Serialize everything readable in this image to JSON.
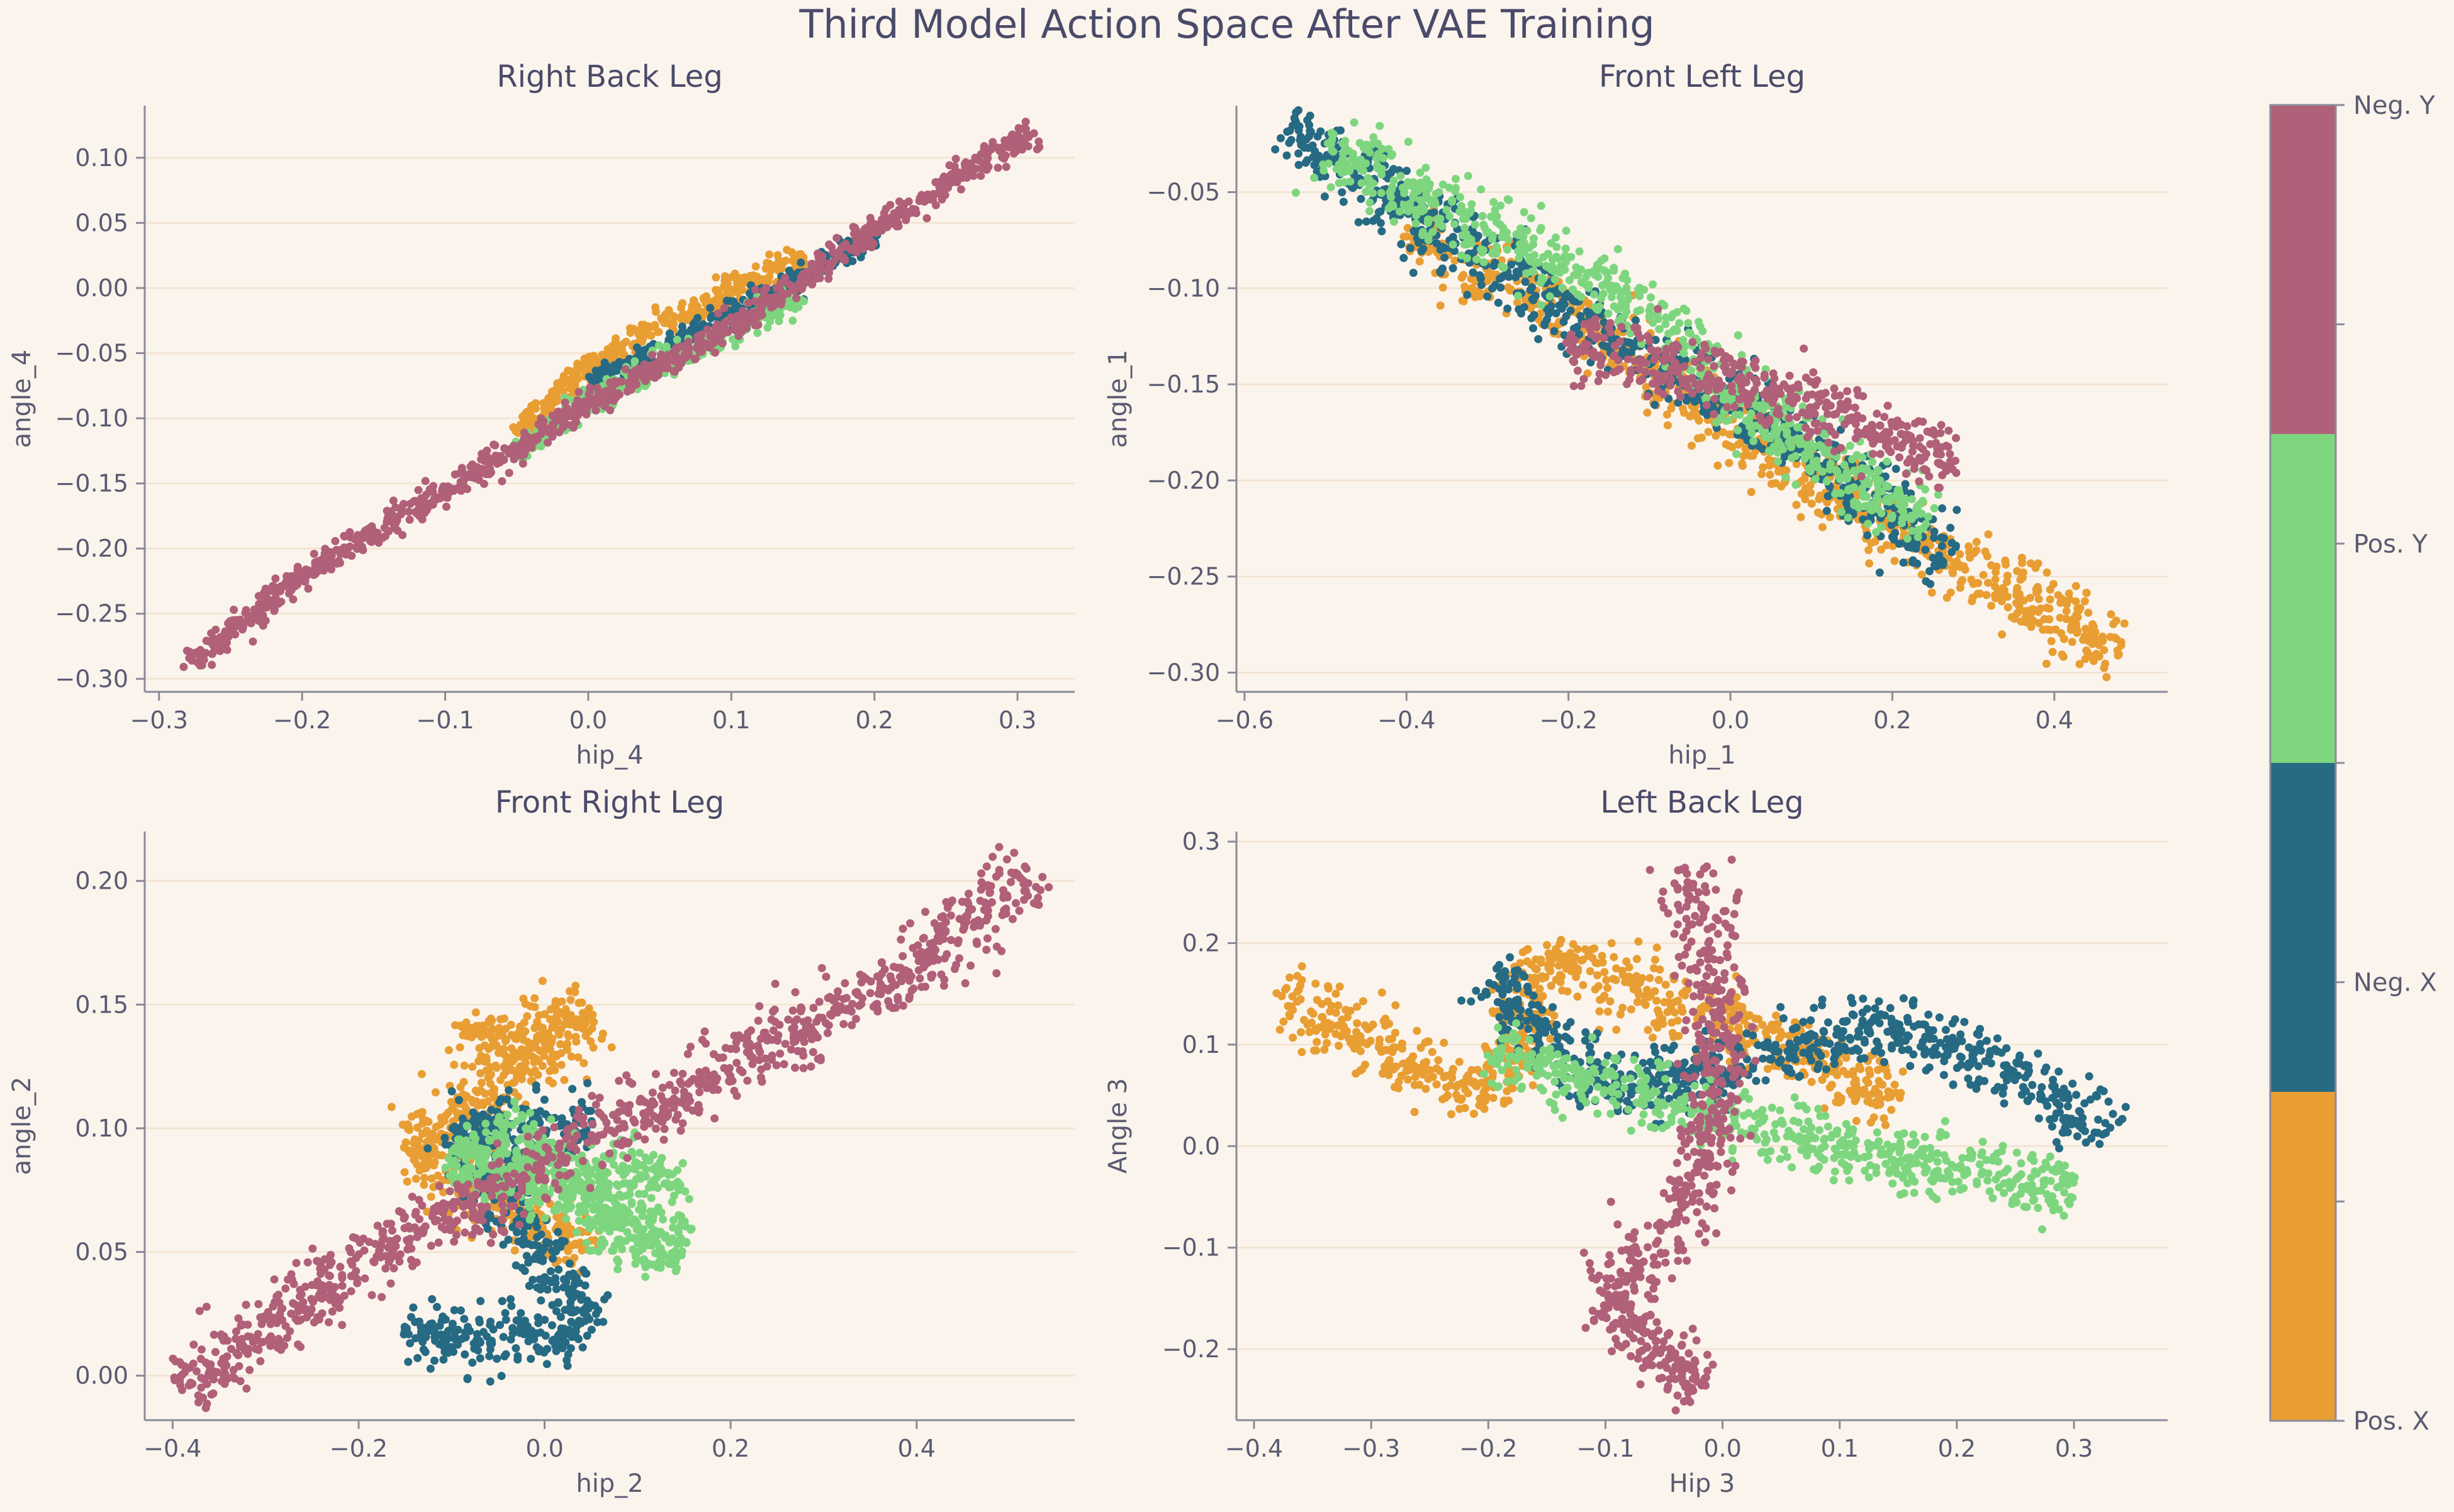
{
  "figure_title": "Third Model Action Space After VAE Training",
  "colors": {
    "background": "#faf4ec",
    "axis": "#8a8a9a",
    "text": "#5a5a72",
    "title": "#4a4a6a",
    "grid": "#f3e2d0"
  },
  "colorbar": {
    "labels": [
      "Neg. Y",
      "Pos. Y",
      "Neg. X",
      "Pos. X"
    ],
    "colors": [
      "#b06078",
      "#7dd67f",
      "#266a84",
      "#e89e33"
    ]
  },
  "chart_data": [
    {
      "type": "scatter",
      "title": "Right Back Leg",
      "xlabel": "hip_4",
      "ylabel": "angle_4",
      "xlim": [
        -0.31,
        0.34
      ],
      "ylim": [
        -0.31,
        0.14
      ],
      "xticks": [
        -0.3,
        -0.2,
        -0.1,
        0.0,
        0.1,
        0.2,
        0.3
      ],
      "xtick_labels": [
        "−0.3",
        "−0.2",
        "−0.1",
        "0.0",
        "0.1",
        "0.2",
        "0.3"
      ],
      "yticks": [
        -0.3,
        -0.25,
        -0.2,
        -0.15,
        -0.1,
        -0.05,
        0.0,
        0.05,
        0.1
      ],
      "ytick_labels": [
        "−0.30",
        "−0.25",
        "−0.20",
        "−0.15",
        "−0.10",
        "−0.05",
        "0.00",
        "0.05",
        "0.10"
      ],
      "series": [
        {
          "color": "#e89e33",
          "values": [
            [
              -0.05,
              -0.112
            ],
            [
              0.0,
              -0.062
            ],
            [
              0.05,
              -0.028
            ],
            [
              0.1,
              -0.002
            ],
            [
              0.15,
              0.025
            ]
          ]
        },
        {
          "color": "#266a84",
          "values": [
            [
              0.0,
              -0.075
            ],
            [
              0.05,
              -0.048
            ],
            [
              0.1,
              -0.02
            ],
            [
              0.15,
              0.008
            ],
            [
              0.2,
              0.04
            ]
          ]
        },
        {
          "color": "#7dd67f",
          "values": [
            [
              -0.05,
              -0.128
            ],
            [
              0.0,
              -0.085
            ],
            [
              0.05,
              -0.06
            ],
            [
              0.1,
              -0.035
            ],
            [
              0.15,
              -0.005
            ]
          ]
        },
        {
          "color": "#b06078",
          "values": [
            [
              -0.28,
              -0.29
            ],
            [
              -0.2,
              -0.22
            ],
            [
              -0.1,
              -0.155
            ],
            [
              0.0,
              -0.09
            ],
            [
              0.1,
              -0.03
            ],
            [
              0.2,
              0.045
            ],
            [
              0.31,
              0.12
            ]
          ]
        }
      ]
    },
    {
      "type": "scatter",
      "title": "Front Left Leg",
      "xlabel": "hip_1",
      "ylabel": "angle_1",
      "xlim": [
        -0.61,
        0.54
      ],
      "ylim": [
        -0.31,
        -0.005
      ],
      "xticks": [
        -0.6,
        -0.4,
        -0.2,
        0.0,
        0.2,
        0.4
      ],
      "xtick_labels": [
        "−0.6",
        "−0.4",
        "−0.2",
        "0.0",
        "0.2",
        "0.4"
      ],
      "yticks": [
        -0.3,
        -0.25,
        -0.2,
        -0.15,
        -0.1,
        -0.05
      ],
      "ytick_labels": [
        "−0.30",
        "−0.25",
        "−0.20",
        "−0.15",
        "−0.10",
        "−0.05"
      ],
      "series": [
        {
          "color": "#e89e33",
          "values": [
            [
              -0.4,
              -0.072
            ],
            [
              -0.2,
              -0.112
            ],
            [
              0.1,
              -0.2
            ],
            [
              0.3,
              -0.248
            ],
            [
              0.48,
              -0.29
            ]
          ]
        },
        {
          "color": "#266a84",
          "values": [
            [
              -0.55,
              -0.015
            ],
            [
              -0.4,
              -0.06
            ],
            [
              -0.2,
              -0.115
            ],
            [
              0.05,
              -0.17
            ],
            [
              0.27,
              -0.24
            ]
          ]
        },
        {
          "color": "#7dd67f",
          "values": [
            [
              -0.5,
              -0.025
            ],
            [
              -0.35,
              -0.06
            ],
            [
              -0.15,
              -0.1
            ],
            [
              0.1,
              -0.185
            ],
            [
              0.25,
              -0.225
            ]
          ]
        },
        {
          "color": "#b06078",
          "values": [
            [
              -0.2,
              -0.125
            ],
            [
              -0.1,
              -0.14
            ],
            [
              0.0,
              -0.148
            ],
            [
              0.1,
              -0.16
            ],
            [
              0.28,
              -0.192
            ]
          ]
        }
      ]
    },
    {
      "type": "scatter",
      "title": "Front Right Leg",
      "xlabel": "hip_2",
      "ylabel": "angle_2",
      "xlim": [
        -0.43,
        0.57
      ],
      "ylim": [
        -0.018,
        0.22
      ],
      "xticks": [
        -0.4,
        -0.2,
        0.0,
        0.2,
        0.4
      ],
      "xtick_labels": [
        "−0.4",
        "−0.2",
        "0.0",
        "0.2",
        "0.4"
      ],
      "yticks": [
        0.0,
        0.05,
        0.1,
        0.15,
        0.2
      ],
      "ytick_labels": [
        "0.00",
        "0.05",
        "0.10",
        "0.15",
        "0.20"
      ],
      "series": [
        {
          "color": "#e89e33",
          "values": [
            [
              -0.1,
              0.14
            ],
            [
              -0.05,
              0.135
            ],
            [
              0.05,
              0.145
            ],
            [
              -0.15,
              0.09
            ],
            [
              0.05,
              0.05
            ]
          ]
        },
        {
          "color": "#266a84",
          "values": [
            [
              -0.15,
              0.02
            ],
            [
              -0.05,
              0.015
            ],
            [
              0.05,
              0.02
            ],
            [
              -0.1,
              0.1
            ],
            [
              0.05,
              0.1
            ]
          ]
        },
        {
          "color": "#7dd67f",
          "values": [
            [
              -0.05,
              0.105
            ],
            [
              0.1,
              0.055
            ],
            [
              0.15,
              0.05
            ],
            [
              -0.1,
              0.09
            ],
            [
              0.15,
              0.08
            ]
          ]
        },
        {
          "color": "#b06078",
          "values": [
            [
              -0.39,
              -0.005
            ],
            [
              -0.2,
              0.045
            ],
            [
              0.0,
              0.085
            ],
            [
              0.2,
              0.125
            ],
            [
              0.4,
              0.165
            ],
            [
              0.53,
              0.205
            ]
          ]
        }
      ]
    },
    {
      "type": "scatter",
      "title": "Left Back Leg",
      "xlabel": "Hip 3",
      "ylabel": "Angle 3",
      "xlim": [
        -0.415,
        0.38
      ],
      "ylim": [
        -0.27,
        0.31
      ],
      "xticks": [
        -0.4,
        -0.3,
        -0.2,
        -0.1,
        0.0,
        0.1,
        0.2,
        0.3
      ],
      "xtick_labels": [
        "−0.4",
        "−0.3",
        "−0.2",
        "−0.1",
        "0.0",
        "0.1",
        "0.2",
        "0.3"
      ],
      "yticks": [
        -0.2,
        -0.1,
        0.0,
        0.1,
        0.2,
        0.3
      ],
      "ytick_labels": [
        "−0.2",
        "−0.1",
        "0.0",
        "0.1",
        "0.2",
        "0.3"
      ],
      "series": [
        {
          "color": "#e89e33",
          "values": [
            [
              -0.38,
              0.15
            ],
            [
              -0.3,
              0.1
            ],
            [
              -0.2,
              0.05
            ],
            [
              -0.15,
              0.19
            ],
            [
              0.15,
              0.05
            ]
          ]
        },
        {
          "color": "#266a84",
          "values": [
            [
              -0.2,
              0.17
            ],
            [
              -0.1,
              0.05
            ],
            [
              0.15,
              0.12
            ],
            [
              0.25,
              0.07
            ],
            [
              0.33,
              0.01
            ]
          ]
        },
        {
          "color": "#7dd67f",
          "values": [
            [
              -0.2,
              0.09
            ],
            [
              -0.1,
              0.06
            ],
            [
              0.1,
              0.0
            ],
            [
              0.2,
              -0.02
            ],
            [
              0.3,
              -0.04
            ]
          ]
        },
        {
          "color": "#b06078",
          "values": [
            [
              -0.03,
              0.28
            ],
            [
              0.0,
              0.1
            ],
            [
              -0.02,
              -0.05
            ],
            [
              -0.1,
              -0.15
            ],
            [
              -0.02,
              -0.24
            ]
          ]
        }
      ]
    }
  ]
}
